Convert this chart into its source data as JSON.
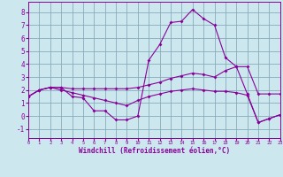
{
  "xlabel": "Windchill (Refroidissement éolien,°C)",
  "bg_color": "#cce8ee",
  "grid_color": "#88aabb",
  "line_color": "#880099",
  "xlim": [
    0,
    23
  ],
  "ylim": [
    -1.7,
    8.8
  ],
  "yticks": [
    -1,
    0,
    1,
    2,
    3,
    4,
    5,
    6,
    7,
    8
  ],
  "xticks": [
    0,
    1,
    2,
    3,
    4,
    5,
    6,
    7,
    8,
    9,
    10,
    11,
    12,
    13,
    14,
    15,
    16,
    17,
    18,
    19,
    20,
    21,
    22,
    23
  ],
  "line1_x": [
    0,
    1,
    2,
    3,
    4,
    5,
    6,
    7,
    8,
    9,
    10,
    11,
    12,
    13,
    14,
    15,
    16,
    17,
    18,
    19,
    20,
    21,
    22,
    23
  ],
  "line1_y": [
    1.5,
    2.0,
    2.2,
    2.2,
    1.5,
    1.4,
    0.4,
    0.4,
    -0.3,
    -0.3,
    0.0,
    4.3,
    5.5,
    7.2,
    7.3,
    8.2,
    7.5,
    7.0,
    4.5,
    3.8,
    1.7,
    -0.5,
    -0.2,
    0.1
  ],
  "line2_x": [
    0,
    1,
    2,
    3,
    4,
    5,
    6,
    7,
    8,
    9,
    10,
    11,
    12,
    13,
    14,
    15,
    16,
    17,
    18,
    19,
    20,
    21,
    22,
    23
  ],
  "line2_y": [
    1.5,
    2.0,
    2.2,
    2.2,
    2.1,
    2.1,
    2.1,
    2.1,
    2.1,
    2.1,
    2.2,
    2.4,
    2.6,
    2.9,
    3.1,
    3.3,
    3.2,
    3.0,
    3.5,
    3.8,
    3.8,
    1.7,
    1.7,
    1.7
  ],
  "line3_x": [
    0,
    1,
    2,
    3,
    4,
    5,
    6,
    7,
    8,
    9,
    10,
    11,
    12,
    13,
    14,
    15,
    16,
    17,
    18,
    19,
    20,
    21,
    22,
    23
  ],
  "line3_y": [
    1.5,
    2.0,
    2.2,
    2.0,
    1.8,
    1.6,
    1.4,
    1.2,
    1.0,
    0.8,
    1.2,
    1.5,
    1.7,
    1.9,
    2.0,
    2.1,
    2.0,
    1.9,
    1.9,
    1.8,
    1.6,
    -0.5,
    -0.2,
    0.1
  ]
}
